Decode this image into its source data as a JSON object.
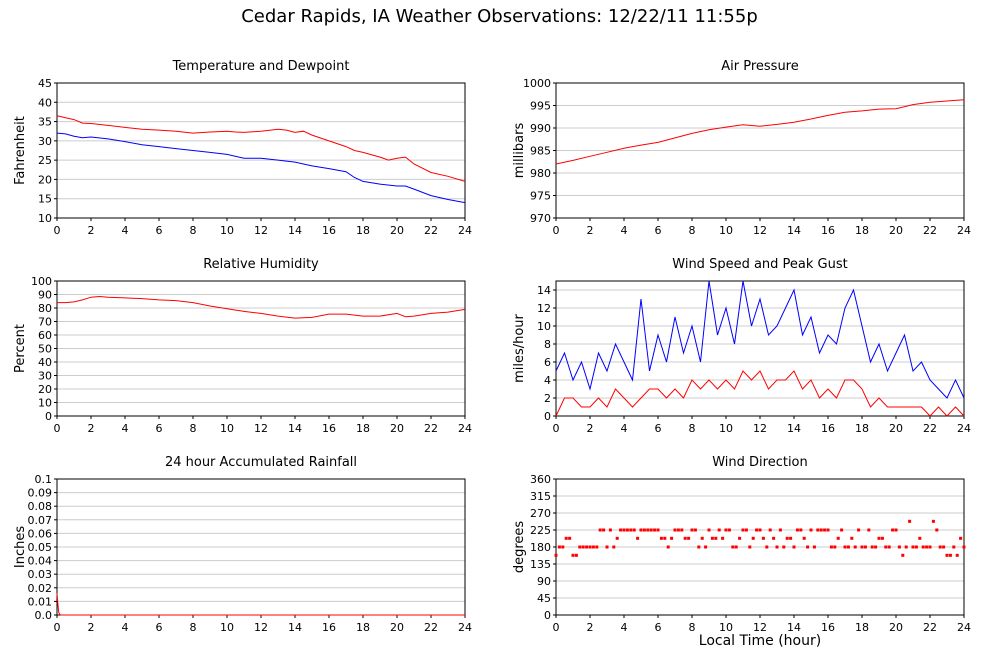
{
  "page": {
    "title": "Cedar Rapids, IA Weather Observations: 12/22/11 11:55p",
    "xlabel": "Local Time (hour)"
  },
  "chart_data": [
    {
      "type": "line",
      "title": "Temperature and Dewpoint",
      "xlabel": "",
      "ylabel": "Fahrenheit",
      "xlim": [
        0,
        24
      ],
      "ylim": [
        10,
        45
      ],
      "xticks": [
        0,
        2,
        4,
        6,
        8,
        10,
        12,
        14,
        16,
        18,
        20,
        22,
        24
      ],
      "yticks": [
        10,
        15,
        20,
        25,
        30,
        35,
        40,
        45
      ],
      "grid": "y",
      "series": [
        {
          "color": "#ff0000",
          "style": "line",
          "x": [
            0,
            0.5,
            1,
            1.5,
            2,
            3,
            4,
            5,
            6,
            7,
            8,
            9,
            10,
            10.5,
            11,
            12,
            13,
            13.5,
            14,
            14.5,
            15,
            16,
            17,
            17.5,
            18,
            19,
            19.5,
            20,
            20.5,
            21,
            22,
            23,
            24
          ],
          "y": [
            36.5,
            36,
            35.5,
            34.6,
            34.5,
            34,
            33.5,
            33,
            32.8,
            32.5,
            32,
            32.3,
            32.5,
            32.3,
            32.2,
            32.5,
            33,
            32.8,
            32.2,
            32.5,
            31.5,
            30,
            28.5,
            27.5,
            27,
            25.8,
            25,
            25.5,
            25.8,
            24,
            21.8,
            20.8,
            19.5
          ]
        },
        {
          "color": "#0000ff",
          "style": "line",
          "x": [
            0,
            0.5,
            1,
            1.5,
            2,
            3,
            4,
            5,
            6,
            7,
            8,
            9,
            10,
            11,
            12,
            13,
            14,
            15,
            16,
            17,
            17.5,
            18,
            19,
            20,
            20.5,
            21,
            22,
            23,
            24
          ],
          "y": [
            32,
            31.8,
            31.2,
            30.8,
            31,
            30.5,
            29.8,
            29,
            28.5,
            28,
            27.5,
            27,
            26.5,
            25.5,
            25.5,
            25,
            24.5,
            23.5,
            22.8,
            22,
            20.5,
            19.5,
            18.8,
            18.3,
            18.3,
            17.5,
            15.8,
            14.8,
            14
          ]
        }
      ]
    },
    {
      "type": "line",
      "title": "Air Pressure",
      "xlabel": "",
      "ylabel": "millibars",
      "xlim": [
        0,
        24
      ],
      "ylim": [
        970,
        1000
      ],
      "xticks": [
        0,
        2,
        4,
        6,
        8,
        10,
        12,
        14,
        16,
        18,
        20,
        22,
        24
      ],
      "yticks": [
        970,
        975,
        980,
        985,
        990,
        995,
        1000
      ],
      "grid": "y",
      "series": [
        {
          "color": "#ff0000",
          "style": "line",
          "x": [
            0,
            1,
            2,
            3,
            4,
            5,
            6,
            7,
            8,
            9,
            10,
            11,
            12,
            13,
            14,
            15,
            16,
            17,
            18,
            19,
            20,
            21,
            22,
            23,
            24
          ],
          "y": [
            982,
            982.8,
            983.7,
            984.6,
            985.5,
            986.2,
            986.8,
            987.8,
            988.8,
            989.6,
            990.2,
            990.7,
            990.4,
            990.8,
            991.3,
            992,
            992.8,
            993.5,
            993.8,
            994.2,
            994.3,
            995.2,
            995.7,
            996,
            996.3
          ]
        }
      ]
    },
    {
      "type": "line",
      "title": "Relative Humidity",
      "xlabel": "",
      "ylabel": "Percent",
      "xlim": [
        0,
        24
      ],
      "ylim": [
        0,
        100
      ],
      "xticks": [
        0,
        2,
        4,
        6,
        8,
        10,
        12,
        14,
        16,
        18,
        20,
        22,
        24
      ],
      "yticks": [
        0,
        10,
        20,
        30,
        40,
        50,
        60,
        70,
        80,
        90,
        100
      ],
      "grid": "y",
      "series": [
        {
          "color": "#ff0000",
          "style": "line",
          "x": [
            0,
            0.5,
            1,
            1.5,
            2,
            2.5,
            3,
            4,
            5,
            6,
            7,
            8,
            9,
            10,
            11,
            12,
            13,
            14,
            15,
            16,
            17,
            18,
            19,
            20,
            20.5,
            21,
            22,
            23,
            24
          ],
          "y": [
            84,
            84,
            84.5,
            86,
            88,
            88.5,
            88,
            87.5,
            87,
            86,
            85.5,
            84,
            81.5,
            79.5,
            77.5,
            76,
            74,
            72.5,
            73,
            75.5,
            75.5,
            74,
            74,
            76,
            73.5,
            74,
            76,
            77,
            79
          ]
        }
      ]
    },
    {
      "type": "line",
      "title": "Wind Speed and Peak Gust",
      "xlabel": "",
      "ylabel": "miles/hour",
      "xlim": [
        0,
        24
      ],
      "ylim": [
        0,
        15
      ],
      "xticks": [
        0,
        2,
        4,
        6,
        8,
        10,
        12,
        14,
        16,
        18,
        20,
        22,
        24
      ],
      "yticks": [
        0,
        2,
        4,
        6,
        8,
        10,
        12,
        14
      ],
      "grid": "y",
      "series": [
        {
          "color": "#0000ff",
          "style": "line",
          "x": [
            0,
            0.5,
            1,
            1.5,
            2,
            2.5,
            3,
            3.5,
            4,
            4.5,
            5,
            5.5,
            6,
            6.5,
            7,
            7.5,
            8,
            8.5,
            9,
            9.5,
            10,
            10.5,
            11,
            11.5,
            12,
            12.5,
            13,
            13.5,
            14,
            14.5,
            15,
            15.5,
            16,
            16.5,
            17,
            17.5,
            18,
            18.5,
            19,
            19.5,
            20,
            20.5,
            21,
            21.5,
            22,
            22.5,
            23,
            23.5,
            24
          ],
          "y": [
            5,
            7,
            4,
            6,
            3,
            7,
            5,
            8,
            6,
            4,
            13,
            5,
            9,
            6,
            11,
            7,
            10,
            6,
            15,
            9,
            12,
            8,
            15,
            10,
            13,
            9,
            10,
            12,
            14,
            9,
            11,
            7,
            9,
            8,
            12,
            14,
            10,
            6,
            8,
            5,
            7,
            9,
            5,
            6,
            4,
            3,
            2,
            4,
            2
          ]
        },
        {
          "color": "#ff0000",
          "style": "line",
          "x": [
            0,
            0.5,
            1,
            1.5,
            2,
            2.5,
            3,
            3.5,
            4,
            4.5,
            5,
            5.5,
            6,
            6.5,
            7,
            7.5,
            8,
            8.5,
            9,
            9.5,
            10,
            10.5,
            11,
            11.5,
            12,
            12.5,
            13,
            13.5,
            14,
            14.5,
            15,
            15.5,
            16,
            16.5,
            17,
            17.5,
            18,
            18.5,
            19,
            19.5,
            20,
            20.5,
            21,
            21.5,
            22,
            22.5,
            23,
            23.5,
            24
          ],
          "y": [
            0,
            2,
            2,
            1,
            1,
            2,
            1,
            3,
            2,
            1,
            2,
            3,
            3,
            2,
            3,
            2,
            4,
            3,
            4,
            3,
            4,
            3,
            5,
            4,
            5,
            3,
            4,
            4,
            5,
            3,
            4,
            2,
            3,
            2,
            4,
            4,
            3,
            1,
            2,
            1,
            1,
            1,
            1,
            1,
            0,
            1,
            0,
            1,
            0
          ]
        }
      ]
    },
    {
      "type": "line",
      "title": "24 hour Accumulated Rainfall",
      "xlabel": "",
      "ylabel": "Inches",
      "xlim": [
        0,
        24
      ],
      "ylim": [
        0,
        0.1
      ],
      "xticks": [
        0,
        2,
        4,
        6,
        8,
        10,
        12,
        14,
        16,
        18,
        20,
        22,
        24
      ],
      "yticks": [
        0.0,
        0.01,
        0.02,
        0.03,
        0.04,
        0.05,
        0.06,
        0.07,
        0.08,
        0.09,
        0.1
      ],
      "grid": "y",
      "series": [
        {
          "color": "#ff0000",
          "style": "line",
          "x": [
            0,
            0.05,
            0.1,
            0.2,
            24
          ],
          "y": [
            0.016,
            0.008,
            0.002,
            0,
            0
          ]
        }
      ]
    },
    {
      "type": "scatter",
      "title": "Wind Direction",
      "xlabel": "Local Time (hour)",
      "ylabel": "degrees",
      "xlim": [
        0,
        24
      ],
      "ylim": [
        0,
        360
      ],
      "xticks": [
        0,
        2,
        4,
        6,
        8,
        10,
        12,
        14,
        16,
        18,
        20,
        22,
        24
      ],
      "yticks": [
        0,
        45,
        90,
        135,
        180,
        225,
        270,
        315,
        360
      ],
      "grid": "y",
      "series": [
        {
          "color": "#ff0000",
          "style": "points",
          "x": [
            0,
            0.2,
            0.4,
            0.6,
            0.8,
            1,
            1.2,
            1.4,
            1.6,
            1.8,
            2,
            2.2,
            2.4,
            2.6,
            2.8,
            3,
            3.2,
            3.4,
            3.6,
            3.8,
            4,
            4.2,
            4.4,
            4.6,
            4.8,
            5,
            5.2,
            5.4,
            5.6,
            5.8,
            6,
            6.2,
            6.4,
            6.6,
            6.8,
            7,
            7.2,
            7.4,
            7.6,
            7.8,
            8,
            8.2,
            8.4,
            8.6,
            8.8,
            9,
            9.2,
            9.4,
            9.6,
            9.8,
            10,
            10.2,
            10.4,
            10.6,
            10.8,
            11,
            11.2,
            11.4,
            11.6,
            11.8,
            12,
            12.2,
            12.4,
            12.6,
            12.8,
            13,
            13.2,
            13.4,
            13.6,
            13.8,
            14,
            14.2,
            14.4,
            14.6,
            14.8,
            15,
            15.2,
            15.4,
            15.6,
            15.8,
            16,
            16.2,
            16.4,
            16.6,
            16.8,
            17,
            17.2,
            17.4,
            17.6,
            17.8,
            18,
            18.2,
            18.4,
            18.6,
            18.8,
            19,
            19.2,
            19.4,
            19.6,
            19.8,
            20,
            20.2,
            20.4,
            20.6,
            20.8,
            21,
            21.2,
            21.4,
            21.6,
            21.8,
            22,
            22.2,
            22.4,
            22.6,
            22.8,
            23,
            23.2,
            23.4,
            23.6,
            23.8,
            24
          ],
          "y": [
            158,
            180,
            180,
            203,
            203,
            158,
            158,
            180,
            180,
            180,
            180,
            180,
            180,
            225,
            225,
            180,
            225,
            180,
            203,
            225,
            225,
            225,
            225,
            225,
            203,
            225,
            225,
            225,
            225,
            225,
            225,
            203,
            203,
            180,
            203,
            225,
            225,
            225,
            203,
            203,
            225,
            225,
            180,
            203,
            180,
            225,
            203,
            203,
            225,
            203,
            225,
            225,
            180,
            180,
            203,
            225,
            225,
            180,
            203,
            225,
            225,
            203,
            180,
            225,
            203,
            180,
            225,
            180,
            203,
            203,
            180,
            225,
            225,
            203,
            180,
            225,
            180,
            225,
            225,
            225,
            225,
            180,
            180,
            203,
            225,
            180,
            180,
            203,
            180,
            225,
            180,
            180,
            225,
            180,
            180,
            203,
            203,
            180,
            180,
            225,
            225,
            180,
            158,
            180,
            248,
            180,
            180,
            203,
            180,
            180,
            180,
            248,
            225,
            180,
            180,
            158,
            158,
            180,
            158,
            203,
            180
          ]
        }
      ]
    }
  ]
}
